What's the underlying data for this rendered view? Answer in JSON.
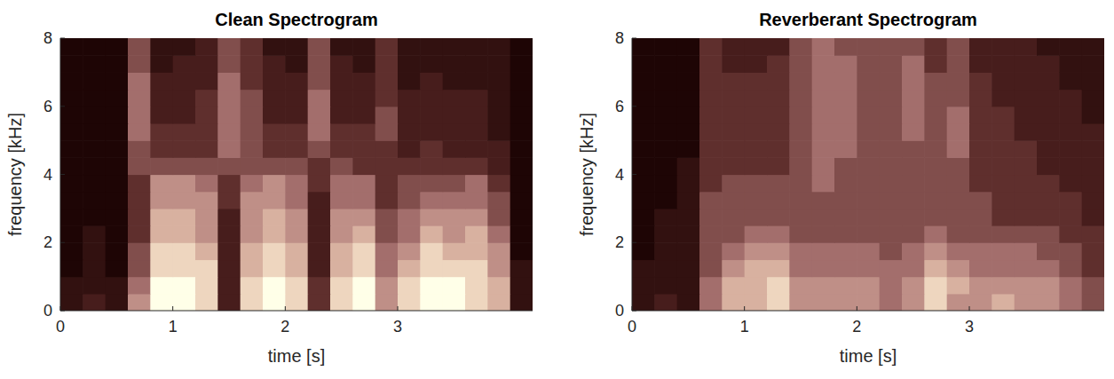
{
  "chart_data": [
    {
      "type": "heatmap",
      "title": "Clean Spectrogram",
      "x_label": "time [s]",
      "y_label": "frequency [kHz]",
      "xlim": [
        0,
        4.2
      ],
      "ylim": [
        0,
        8
      ],
      "xticks": [
        0,
        1,
        2,
        3
      ],
      "yticks": [
        0,
        2,
        4,
        6,
        8
      ],
      "zlim": [
        0,
        9
      ],
      "x_bins": [
        0,
        0.2,
        0.4,
        0.6,
        0.8,
        1.0,
        1.2,
        1.4,
        1.6,
        1.8,
        2.0,
        2.2,
        2.4,
        2.6,
        2.8,
        3.0,
        3.2,
        3.4,
        3.6,
        3.8,
        4.0,
        4.2
      ],
      "y_bins": [
        0,
        0.5,
        1,
        1.5,
        2,
        2.5,
        3,
        3.5,
        4,
        4.5,
        5,
        5.5,
        6,
        6.5,
        7,
        7.5,
        8
      ],
      "cells": [
        [
          1,
          2,
          1,
          6,
          9,
          9,
          8,
          2,
          8,
          9,
          8,
          3,
          8,
          9,
          6,
          8,
          9,
          9,
          8,
          7,
          1
        ],
        [
          1,
          1,
          1,
          5,
          9,
          9,
          8,
          2,
          8,
          9,
          8,
          3,
          8,
          9,
          6,
          8,
          9,
          9,
          8,
          7,
          1
        ],
        [
          0,
          1,
          0,
          4,
          8,
          8,
          8,
          2,
          7,
          8,
          7,
          2,
          7,
          8,
          5,
          7,
          8,
          8,
          8,
          6,
          1
        ],
        [
          0,
          1,
          0,
          4,
          8,
          8,
          7,
          2,
          7,
          8,
          7,
          2,
          7,
          8,
          5,
          6,
          8,
          7,
          7,
          6,
          0
        ],
        [
          0,
          1,
          0,
          3,
          7,
          7,
          6,
          2,
          6,
          7,
          6,
          2,
          6,
          7,
          4,
          5,
          7,
          6,
          7,
          5,
          0
        ],
        [
          0,
          0,
          0,
          3,
          7,
          7,
          6,
          2,
          6,
          7,
          6,
          2,
          6,
          6,
          4,
          5,
          6,
          6,
          6,
          4,
          0
        ],
        [
          0,
          0,
          0,
          3,
          6,
          6,
          6,
          3,
          6,
          6,
          5,
          2,
          5,
          5,
          3,
          4,
          5,
          5,
          5,
          4,
          0
        ],
        [
          0,
          0,
          0,
          3,
          6,
          6,
          5,
          3,
          5,
          6,
          5,
          3,
          5,
          5,
          3,
          4,
          4,
          4,
          5,
          3,
          0
        ],
        [
          0,
          0,
          0,
          4,
          4,
          4,
          4,
          4,
          4,
          4,
          4,
          3,
          4,
          3,
          3,
          3,
          3,
          3,
          3,
          2,
          0
        ],
        [
          0,
          0,
          0,
          4,
          3,
          3,
          3,
          5,
          4,
          3,
          3,
          4,
          3,
          3,
          3,
          2,
          3,
          2,
          2,
          2,
          0
        ],
        [
          0,
          0,
          0,
          5,
          3,
          3,
          3,
          5,
          4,
          3,
          3,
          5,
          3,
          3,
          4,
          2,
          2,
          2,
          2,
          1,
          0
        ],
        [
          0,
          0,
          0,
          5,
          2,
          2,
          3,
          5,
          4,
          2,
          2,
          5,
          2,
          2,
          4,
          2,
          2,
          2,
          2,
          1,
          0
        ],
        [
          0,
          0,
          0,
          5,
          2,
          2,
          3,
          5,
          4,
          2,
          2,
          5,
          2,
          2,
          3,
          2,
          2,
          2,
          2,
          1,
          0
        ],
        [
          0,
          0,
          0,
          5,
          2,
          2,
          2,
          5,
          3,
          2,
          2,
          4,
          2,
          2,
          3,
          1,
          2,
          1,
          1,
          1,
          0
        ],
        [
          0,
          0,
          0,
          4,
          1,
          2,
          2,
          4,
          3,
          2,
          1,
          4,
          2,
          1,
          3,
          1,
          1,
          1,
          1,
          1,
          0
        ],
        [
          0,
          0,
          0,
          4,
          1,
          1,
          2,
          4,
          3,
          1,
          1,
          4,
          1,
          1,
          3,
          1,
          1,
          1,
          1,
          1,
          0
        ]
      ]
    },
    {
      "type": "heatmap",
      "title": "Reverberant Spectrogram",
      "x_label": "time [s]",
      "y_label": "frequency [kHz]",
      "xlim": [
        0,
        4.2
      ],
      "ylim": [
        0,
        8
      ],
      "xticks": [
        0,
        1,
        2,
        3
      ],
      "yticks": [
        0,
        2,
        4,
        6,
        8
      ],
      "zlim": [
        0,
        9
      ],
      "x_bins": [
        0,
        0.2,
        0.4,
        0.6,
        0.8,
        1.0,
        1.2,
        1.4,
        1.6,
        1.8,
        2.0,
        2.2,
        2.4,
        2.6,
        2.8,
        3.0,
        3.2,
        3.4,
        3.6,
        3.8,
        4.0,
        4.2
      ],
      "y_bins": [
        0,
        0.5,
        1,
        1.5,
        2,
        2.5,
        3,
        3.5,
        4,
        4.5,
        5,
        5.5,
        6,
        6.5,
        7,
        7.5,
        8
      ],
      "cells": [
        [
          1,
          2,
          1,
          5,
          7,
          7,
          8,
          6,
          6,
          6,
          6,
          5,
          6,
          8,
          6,
          6,
          7,
          6,
          6,
          5,
          4
        ],
        [
          1,
          1,
          1,
          5,
          7,
          7,
          8,
          6,
          6,
          6,
          6,
          5,
          6,
          8,
          7,
          6,
          6,
          6,
          6,
          5,
          4
        ],
        [
          1,
          1,
          1,
          4,
          6,
          7,
          7,
          5,
          5,
          5,
          5,
          5,
          5,
          7,
          6,
          5,
          5,
          5,
          5,
          4,
          3
        ],
        [
          0,
          1,
          1,
          4,
          5,
          6,
          6,
          5,
          5,
          5,
          5,
          4,
          5,
          6,
          5,
          5,
          5,
          5,
          4,
          4,
          3
        ],
        [
          0,
          1,
          1,
          4,
          4,
          5,
          5,
          4,
          4,
          4,
          4,
          4,
          4,
          5,
          4,
          4,
          4,
          4,
          4,
          3,
          3
        ],
        [
          0,
          1,
          1,
          4,
          4,
          4,
          4,
          4,
          4,
          4,
          4,
          4,
          4,
          4,
          4,
          4,
          3,
          3,
          3,
          3,
          2
        ],
        [
          0,
          0,
          1,
          4,
          4,
          4,
          4,
          4,
          4,
          4,
          4,
          4,
          4,
          4,
          4,
          4,
          3,
          3,
          3,
          3,
          2
        ],
        [
          0,
          0,
          1,
          3,
          4,
          4,
          4,
          4,
          5,
          4,
          4,
          4,
          4,
          4,
          4,
          3,
          3,
          3,
          3,
          2,
          2
        ],
        [
          0,
          0,
          1,
          3,
          3,
          3,
          3,
          4,
          5,
          4,
          4,
          4,
          4,
          4,
          4,
          3,
          3,
          3,
          2,
          2,
          2
        ],
        [
          0,
          0,
          0,
          3,
          3,
          3,
          3,
          4,
          5,
          5,
          4,
          4,
          4,
          4,
          5,
          3,
          3,
          3,
          2,
          2,
          2
        ],
        [
          0,
          0,
          0,
          3,
          3,
          3,
          3,
          4,
          5,
          5,
          4,
          4,
          5,
          4,
          5,
          3,
          3,
          2,
          2,
          2,
          2
        ],
        [
          0,
          0,
          0,
          3,
          3,
          3,
          3,
          4,
          5,
          5,
          4,
          4,
          5,
          4,
          5,
          3,
          3,
          2,
          2,
          2,
          1
        ],
        [
          0,
          0,
          0,
          3,
          3,
          3,
          3,
          4,
          5,
          5,
          4,
          4,
          5,
          4,
          4,
          3,
          2,
          2,
          2,
          2,
          1
        ],
        [
          0,
          0,
          0,
          3,
          3,
          3,
          3,
          4,
          5,
          5,
          4,
          4,
          5,
          4,
          4,
          3,
          2,
          2,
          2,
          1,
          1
        ],
        [
          0,
          0,
          0,
          3,
          2,
          2,
          3,
          4,
          5,
          5,
          4,
          4,
          5,
          3,
          4,
          2,
          2,
          2,
          2,
          1,
          1
        ],
        [
          0,
          0,
          0,
          3,
          2,
          2,
          2,
          4,
          5,
          4,
          4,
          4,
          4,
          3,
          4,
          2,
          2,
          2,
          1,
          1,
          1
        ]
      ]
    }
  ]
}
